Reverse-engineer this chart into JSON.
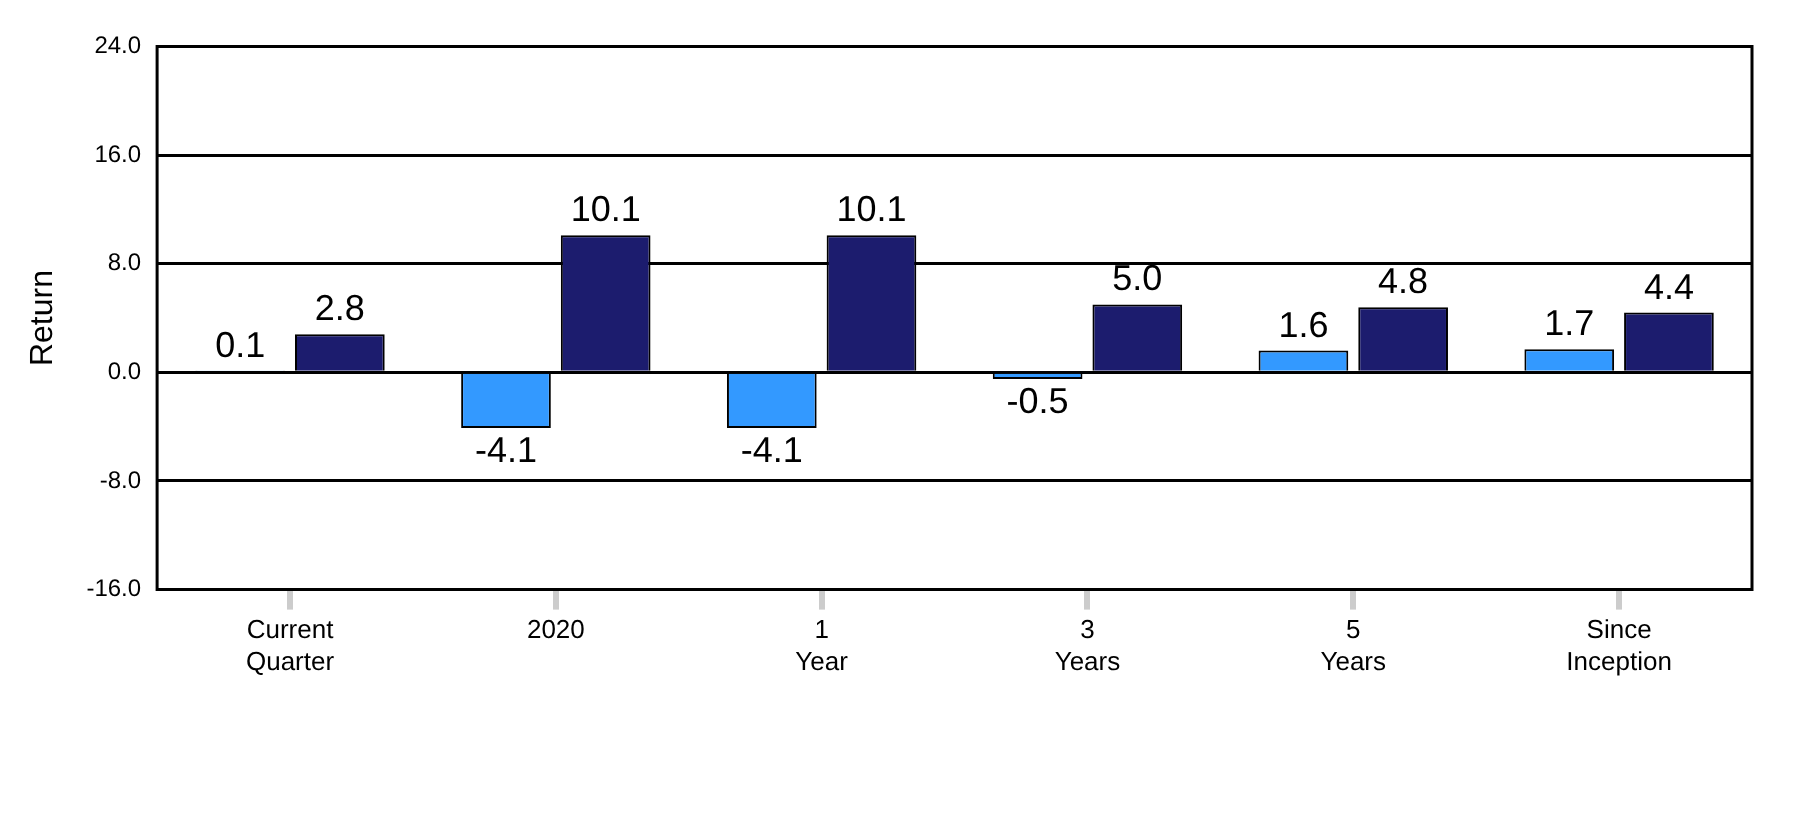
{
  "chart_data": {
    "type": "bar",
    "ylabel": "Return",
    "categories": [
      "Current Quarter",
      "2020",
      "1 Year",
      "3 Years",
      "5 Years",
      "Since Inception"
    ],
    "series": [
      {
        "color": "#3399ff",
        "values": [
          0.1,
          -4.1,
          -4.1,
          -0.5,
          1.6,
          1.7
        ],
        "value_labels": [
          "0.1",
          "-4.1",
          "-4.1",
          "-0.5",
          "1.6",
          "1.7"
        ]
      },
      {
        "color": "#1c1c6e",
        "values": [
          2.8,
          10.1,
          10.1,
          5.0,
          4.8,
          4.4
        ],
        "value_labels": [
          "2.8",
          "10.1",
          "10.1",
          "5.0",
          "4.8",
          "4.4"
        ]
      }
    ],
    "ylim": [
      -16,
      24
    ],
    "yticks": [
      {
        "value": -16,
        "label": "-16.0"
      },
      {
        "value": -8,
        "label": "-8.0"
      },
      {
        "value": 0,
        "label": "0.0"
      },
      {
        "value": 8,
        "label": "8.0"
      },
      {
        "value": 16,
        "label": "16.0"
      },
      {
        "value": 24,
        "label": "24.0"
      }
    ],
    "grid": "y",
    "legend": false
  }
}
